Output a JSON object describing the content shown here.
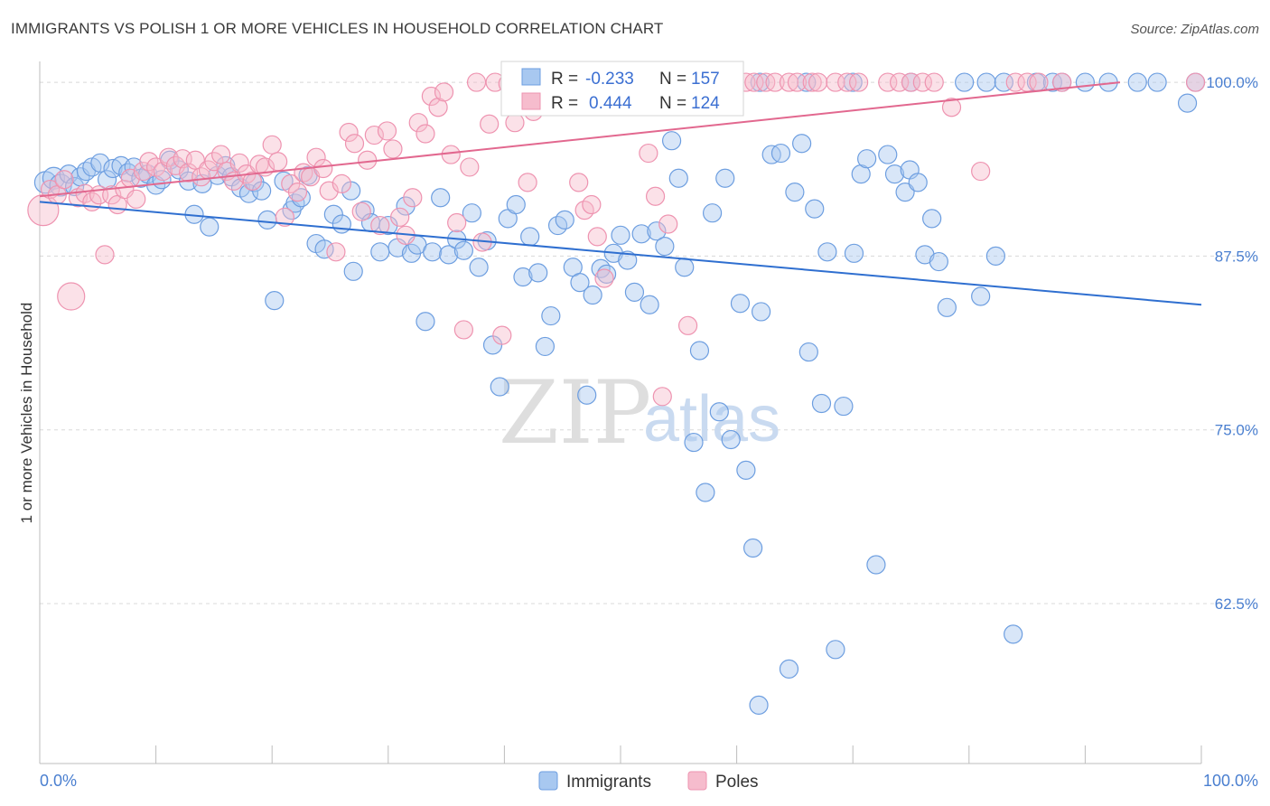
{
  "title": "IMMIGRANTS VS POLISH 1 OR MORE VEHICLES IN HOUSEHOLD CORRELATION CHART",
  "source": "Source: ZipAtlas.com",
  "watermark": {
    "zip": "ZIP",
    "atlas": "atlas"
  },
  "colors": {
    "immigrants_fill": "#a8c8f0",
    "immigrants_stroke": "#6d9ee0",
    "immigrants_line": "#2f6fd0",
    "poles_fill": "#f6bccd",
    "poles_stroke": "#ee93b0",
    "poles_line": "#e2688f",
    "grid": "#d8d8d8",
    "tick_label": "#4a7fd0"
  },
  "legend": {
    "immigrants": {
      "r_label": "R =",
      "r_value": "-0.233",
      "n_label": "N =",
      "n_value": "157"
    },
    "poles": {
      "r_label": "R =",
      "r_value": "0.444",
      "n_label": "N =",
      "n_value": "124"
    }
  },
  "chart_data": {
    "type": "scatter",
    "title": "IMMIGRANTS VS POLISH 1 OR MORE VEHICLES IN HOUSEHOLD CORRELATION CHART",
    "xlabel": "",
    "ylabel": "1 or more Vehicles in Household",
    "xlim": [
      0,
      100
    ],
    "ylim": [
      51,
      101.5
    ],
    "x_tick_labels": [
      "0.0%",
      "100.0%"
    ],
    "y_ticks": [
      {
        "value": 100,
        "label": "100.0%"
      },
      {
        "value": 87.5,
        "label": "87.5%"
      },
      {
        "value": 75,
        "label": "75.0%"
      },
      {
        "value": 62.5,
        "label": "62.5%"
      }
    ],
    "grid": true,
    "legend_position": "top-center",
    "series": [
      {
        "name": "Immigrants",
        "color": "#a8c8f0",
        "trend": {
          "x1": 0,
          "y1": 91.4,
          "x2": 100,
          "y2": 84.0
        },
        "points": [
          [
            0.5,
            92.8
          ],
          [
            1.2,
            93.1
          ],
          [
            1.8,
            92.6
          ],
          [
            2.5,
            93.4
          ],
          [
            3,
            92.5
          ],
          [
            3.5,
            93.2
          ],
          [
            4,
            93.6
          ],
          [
            4.5,
            93.9
          ],
          [
            5.2,
            94.2
          ],
          [
            5.8,
            93.0
          ],
          [
            6.3,
            93.8
          ],
          [
            7,
            94.0
          ],
          [
            7.6,
            93.5
          ],
          [
            8.1,
            93.9
          ],
          [
            8.7,
            93.1
          ],
          [
            9.3,
            93.4
          ],
          [
            10,
            92.6
          ],
          [
            10.5,
            93.0
          ],
          [
            11.2,
            94.4
          ],
          [
            12,
            93.7
          ],
          [
            12.8,
            92.9
          ],
          [
            13.3,
            90.5
          ],
          [
            14,
            92.7
          ],
          [
            14.6,
            89.6
          ],
          [
            15.3,
            93.3
          ],
          [
            16,
            94.0
          ],
          [
            16.5,
            93.2
          ],
          [
            17.3,
            92.4
          ],
          [
            18,
            92.0
          ],
          [
            18.5,
            92.8
          ],
          [
            19.1,
            92.2
          ],
          [
            19.6,
            90.1
          ],
          [
            20.2,
            84.3
          ],
          [
            21,
            92.9
          ],
          [
            21.7,
            90.8
          ],
          [
            22,
            91.3
          ],
          [
            22.5,
            91.7
          ],
          [
            23.1,
            93.3
          ],
          [
            23.8,
            88.4
          ],
          [
            24.5,
            88.0
          ],
          [
            25.3,
            90.5
          ],
          [
            26,
            89.8
          ],
          [
            26.8,
            92.2
          ],
          [
            27,
            86.4
          ],
          [
            28,
            90.8
          ],
          [
            28.5,
            89.9
          ],
          [
            29.3,
            87.8
          ],
          [
            30,
            89.7
          ],
          [
            30.8,
            88.1
          ],
          [
            31.5,
            91.1
          ],
          [
            32,
            87.7
          ],
          [
            32.5,
            88.3
          ],
          [
            33.2,
            82.8
          ],
          [
            33.8,
            87.8
          ],
          [
            34.5,
            91.7
          ],
          [
            35.2,
            87.6
          ],
          [
            35.9,
            88.7
          ],
          [
            36.5,
            87.9
          ],
          [
            37.2,
            90.6
          ],
          [
            37.8,
            86.7
          ],
          [
            38.5,
            88.6
          ],
          [
            39,
            81.1
          ],
          [
            39.6,
            78.1
          ],
          [
            40.3,
            90.2
          ],
          [
            41,
            91.2
          ],
          [
            41.6,
            86.0
          ],
          [
            42.2,
            88.9
          ],
          [
            42.9,
            86.3
          ],
          [
            43.5,
            81.0
          ],
          [
            44,
            83.2
          ],
          [
            44.6,
            89.7
          ],
          [
            45.2,
            90.1
          ],
          [
            45.9,
            86.7
          ],
          [
            46.5,
            85.6
          ],
          [
            47.1,
            77.5
          ],
          [
            47.6,
            84.7
          ],
          [
            48.3,
            86.6
          ],
          [
            48.8,
            86.2
          ],
          [
            49.4,
            87.7
          ],
          [
            50,
            89.0
          ],
          [
            50.6,
            87.2
          ],
          [
            51.2,
            84.9
          ],
          [
            51.8,
            89.1
          ],
          [
            52.5,
            84.0
          ],
          [
            53.1,
            89.3
          ],
          [
            53.8,
            88.2
          ],
          [
            54.4,
            95.8
          ],
          [
            55,
            93.1
          ],
          [
            55.5,
            86.7
          ],
          [
            56.3,
            74.1
          ],
          [
            56.8,
            80.7
          ],
          [
            57.3,
            70.5
          ],
          [
            57.9,
            90.6
          ],
          [
            58.5,
            76.3
          ],
          [
            59,
            93.1
          ],
          [
            59.5,
            74.3
          ],
          [
            60.3,
            84.1
          ],
          [
            60.8,
            72.1
          ],
          [
            61.4,
            66.5
          ],
          [
            61.9,
            55.2
          ],
          [
            62.1,
            83.5
          ],
          [
            63,
            94.8
          ],
          [
            63.8,
            94.9
          ],
          [
            64.5,
            57.8
          ],
          [
            65,
            92.1
          ],
          [
            65.6,
            95.6
          ],
          [
            66.2,
            80.6
          ],
          [
            66.7,
            90.9
          ],
          [
            67.3,
            76.9
          ],
          [
            67.8,
            87.8
          ],
          [
            68.5,
            59.2
          ],
          [
            69.2,
            76.7
          ],
          [
            70.1,
            87.7
          ],
          [
            70.7,
            93.4
          ],
          [
            71.2,
            94.5
          ],
          [
            72,
            65.3
          ],
          [
            73,
            94.8
          ],
          [
            73.6,
            93.4
          ],
          [
            74.5,
            92.1
          ],
          [
            74.9,
            93.7
          ],
          [
            75.6,
            92.8
          ],
          [
            76.2,
            87.6
          ],
          [
            76.8,
            90.2
          ],
          [
            77.4,
            87.1
          ],
          [
            78.1,
            83.8
          ],
          [
            79.6,
            100
          ],
          [
            81,
            84.6
          ],
          [
            82.3,
            87.5
          ],
          [
            83.8,
            60.3
          ],
          [
            85.8,
            100
          ],
          [
            87.2,
            100
          ],
          [
            88,
            100
          ],
          [
            90,
            100
          ],
          [
            92,
            100
          ],
          [
            94.5,
            100
          ],
          [
            96.2,
            100
          ],
          [
            98.8,
            98.5
          ],
          [
            99.5,
            100
          ],
          [
            52,
            100
          ],
          [
            57,
            100
          ],
          [
            62,
            100
          ],
          [
            66,
            100
          ],
          [
            70,
            100
          ],
          [
            75,
            100
          ],
          [
            81.5,
            100
          ],
          [
            83,
            100
          ],
          [
            43.5,
            100
          ],
          [
            45.6,
            100
          ],
          [
            47.5,
            100
          ]
        ]
      },
      {
        "name": "Poles",
        "color": "#f6bccd",
        "trend": {
          "x1": 0,
          "y1": 91.8,
          "x2": 93,
          "y2": 100.0
        },
        "points": [
          [
            0.3,
            90.8
          ],
          [
            0.9,
            92.3
          ],
          [
            1.5,
            91.9
          ],
          [
            2.1,
            93.0
          ],
          [
            2.7,
            84.6
          ],
          [
            3.3,
            91.7
          ],
          [
            3.9,
            92.0
          ],
          [
            4.5,
            91.4
          ],
          [
            5.1,
            91.9
          ],
          [
            5.6,
            87.6
          ],
          [
            6.2,
            91.9
          ],
          [
            6.7,
            91.2
          ],
          [
            7.3,
            92.3
          ],
          [
            7.8,
            93.1
          ],
          [
            8.3,
            91.6
          ],
          [
            8.9,
            93.6
          ],
          [
            9.4,
            94.3
          ],
          [
            10,
            93.9
          ],
          [
            10.6,
            93.6
          ],
          [
            11.1,
            94.6
          ],
          [
            11.7,
            94.0
          ],
          [
            12.3,
            94.5
          ],
          [
            12.8,
            93.5
          ],
          [
            13.4,
            94.4
          ],
          [
            13.9,
            93.2
          ],
          [
            14.5,
            93.7
          ],
          [
            15,
            94.3
          ],
          [
            15.6,
            94.8
          ],
          [
            16.1,
            93.6
          ],
          [
            16.7,
            92.9
          ],
          [
            17.2,
            94.2
          ],
          [
            17.8,
            93.4
          ],
          [
            18.3,
            92.9
          ],
          [
            18.9,
            94.1
          ],
          [
            19.4,
            93.9
          ],
          [
            20,
            95.5
          ],
          [
            20.5,
            94.3
          ],
          [
            21.1,
            90.3
          ],
          [
            21.6,
            92.7
          ],
          [
            22.2,
            92.1
          ],
          [
            22.7,
            93.5
          ],
          [
            23.3,
            93.2
          ],
          [
            23.8,
            94.6
          ],
          [
            24.4,
            93.8
          ],
          [
            24.9,
            92.2
          ],
          [
            25.5,
            87.8
          ],
          [
            26,
            92.7
          ],
          [
            26.6,
            96.4
          ],
          [
            27.1,
            95.6
          ],
          [
            27.7,
            90.7
          ],
          [
            28.2,
            94.4
          ],
          [
            28.8,
            96.2
          ],
          [
            29.3,
            89.7
          ],
          [
            29.9,
            96.5
          ],
          [
            30.4,
            95.2
          ],
          [
            31,
            90.3
          ],
          [
            31.5,
            89.0
          ],
          [
            32.1,
            91.7
          ],
          [
            32.6,
            97.1
          ],
          [
            33.2,
            96.3
          ],
          [
            33.7,
            99.0
          ],
          [
            34.3,
            98.2
          ],
          [
            34.8,
            99.3
          ],
          [
            35.4,
            94.8
          ],
          [
            35.9,
            89.9
          ],
          [
            36.5,
            82.2
          ],
          [
            37,
            93.9
          ],
          [
            37.6,
            100
          ],
          [
            38.1,
            88.5
          ],
          [
            38.7,
            97.0
          ],
          [
            39.2,
            100
          ],
          [
            39.8,
            81.8
          ],
          [
            40.3,
            99.9
          ],
          [
            40.9,
            97.1
          ],
          [
            41.4,
            100
          ],
          [
            42,
            92.8
          ],
          [
            42.5,
            97.9
          ],
          [
            43.1,
            100
          ],
          [
            43.6,
            98.4
          ],
          [
            44.2,
            100
          ],
          [
            44.7,
            99.6
          ],
          [
            45.3,
            98.8
          ],
          [
            45.8,
            100
          ],
          [
            46.4,
            92.8
          ],
          [
            46.9,
            90.8
          ],
          [
            47.5,
            91.2
          ],
          [
            48,
            88.9
          ],
          [
            48.6,
            85.9
          ],
          [
            49.1,
            100
          ],
          [
            49.7,
            100
          ],
          [
            50.2,
            99.4
          ],
          [
            50.8,
            100
          ],
          [
            51.3,
            100
          ],
          [
            51.9,
            100
          ],
          [
            52.4,
            94.9
          ],
          [
            53,
            91.8
          ],
          [
            53.6,
            77.4
          ],
          [
            54.1,
            89.8
          ],
          [
            54.7,
            99.0
          ],
          [
            55.2,
            100
          ],
          [
            55.8,
            82.5
          ],
          [
            56.3,
            100
          ],
          [
            57,
            100
          ],
          [
            58.5,
            100
          ],
          [
            59.5,
            100
          ],
          [
            60.8,
            100
          ],
          [
            61.5,
            100
          ],
          [
            62.5,
            100
          ],
          [
            63.3,
            100
          ],
          [
            64.5,
            100
          ],
          [
            65.2,
            100
          ],
          [
            66.5,
            100
          ],
          [
            67,
            100
          ],
          [
            68.5,
            100
          ],
          [
            69.5,
            100
          ],
          [
            70.5,
            100
          ],
          [
            73,
            100
          ],
          [
            74,
            100
          ],
          [
            75,
            100
          ],
          [
            76,
            100
          ],
          [
            77,
            100
          ],
          [
            78.5,
            98.2
          ],
          [
            81,
            93.6
          ],
          [
            84,
            100
          ],
          [
            85,
            100
          ],
          [
            86,
            100
          ],
          [
            88,
            100
          ],
          [
            99.5,
            100
          ]
        ]
      }
    ]
  },
  "y_axis_label": "1 or more Vehicles in Household",
  "x_axis": {
    "left_label": "0.0%",
    "right_label": "100.0%"
  },
  "bottom_legend": {
    "immigrants": "Immigrants",
    "poles": "Poles"
  }
}
